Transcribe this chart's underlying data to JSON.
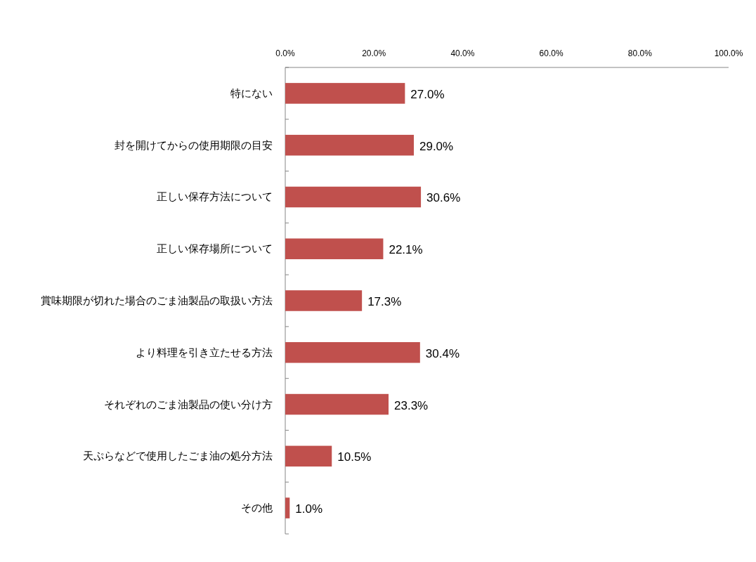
{
  "chart_data": {
    "type": "bar",
    "orientation": "horizontal",
    "categories": [
      "特にない",
      "封を開けてからの使用期限の目安",
      "正しい保存方法について",
      "正しい保存場所について",
      "賞味期限が切れた場合のごま油製品の取扱い方法",
      "より料理を引き立たせる方法",
      "それぞれのごま油製品の使い分け方",
      "天ぷらなどで使用したごま油の処分方法",
      "その他"
    ],
    "values": [
      27.0,
      29.0,
      30.6,
      22.1,
      17.3,
      30.4,
      23.3,
      10.5,
      1.0
    ],
    "value_labels": [
      "27.0%",
      "29.0%",
      "30.6%",
      "22.1%",
      "17.3%",
      "30.4%",
      "23.3%",
      "10.5%",
      "1.0%"
    ],
    "color": "#c0504d",
    "xlim": [
      0,
      100
    ],
    "xticks": [
      {
        "value": 0,
        "label": "0.0%"
      },
      {
        "value": 20,
        "label": "20.0%"
      },
      {
        "value": 40,
        "label": "40.0%"
      },
      {
        "value": 60,
        "label": "60.0%"
      },
      {
        "value": 80,
        "label": "80.0%"
      },
      {
        "value": 100,
        "label": "100.0%"
      }
    ],
    "grid": false
  }
}
